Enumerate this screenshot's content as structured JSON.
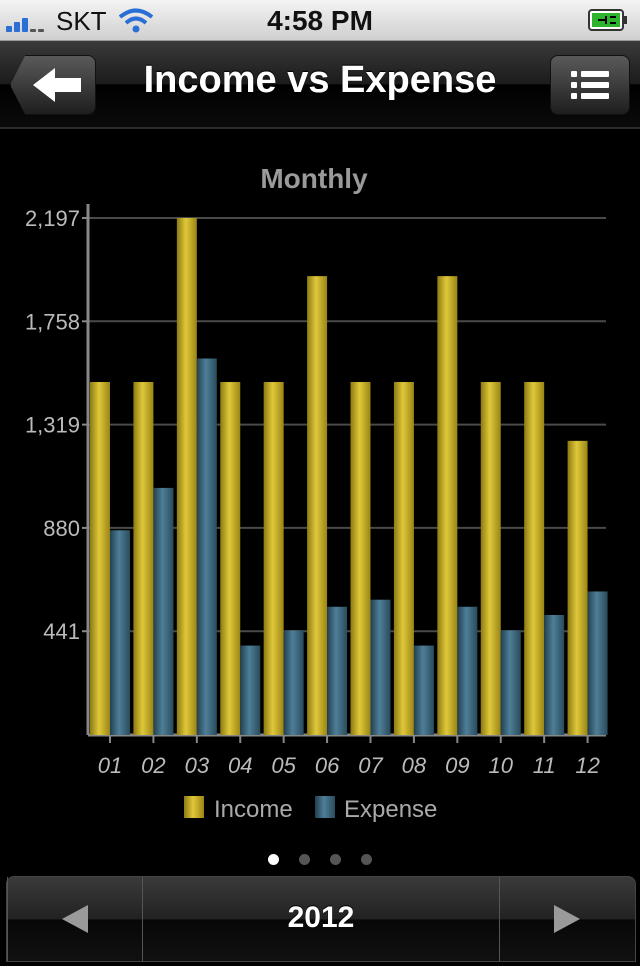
{
  "status_bar": {
    "carrier": "SKT",
    "time": "4:58 PM"
  },
  "nav": {
    "title": "Income vs Expense",
    "back_icon": "arrow-left-icon",
    "menu_icon": "list-icon"
  },
  "colors": {
    "income": "#c9b227",
    "expense": "#3f6a80",
    "axis_text": "#bbbbbb",
    "title_text": "#9a9a9a"
  },
  "chart_data": {
    "type": "bar",
    "title": "Monthly",
    "xlabel": "",
    "ylabel": "",
    "categories": [
      "01",
      "02",
      "03",
      "04",
      "05",
      "06",
      "07",
      "08",
      "09",
      "10",
      "11",
      "12"
    ],
    "series": [
      {
        "name": "Income",
        "values": [
          1500,
          1500,
          2197,
          1500,
          1500,
          1950,
          1500,
          1500,
          1950,
          1500,
          1500,
          1250
        ]
      },
      {
        "name": "Expense",
        "values": [
          870,
          1050,
          1600,
          380,
          445,
          545,
          575,
          380,
          545,
          445,
          510,
          610
        ]
      }
    ],
    "ylim": [
      0,
      2197
    ],
    "yticks": [
      "441",
      "880",
      "1,319",
      "1,758",
      "2,197"
    ],
    "grid": true,
    "legend": "bottom"
  },
  "pager": {
    "pages": 4,
    "active": 0
  },
  "toolbar": {
    "year": "2012",
    "prev_icon": "triangle-left-icon",
    "next_icon": "triangle-right-icon"
  }
}
